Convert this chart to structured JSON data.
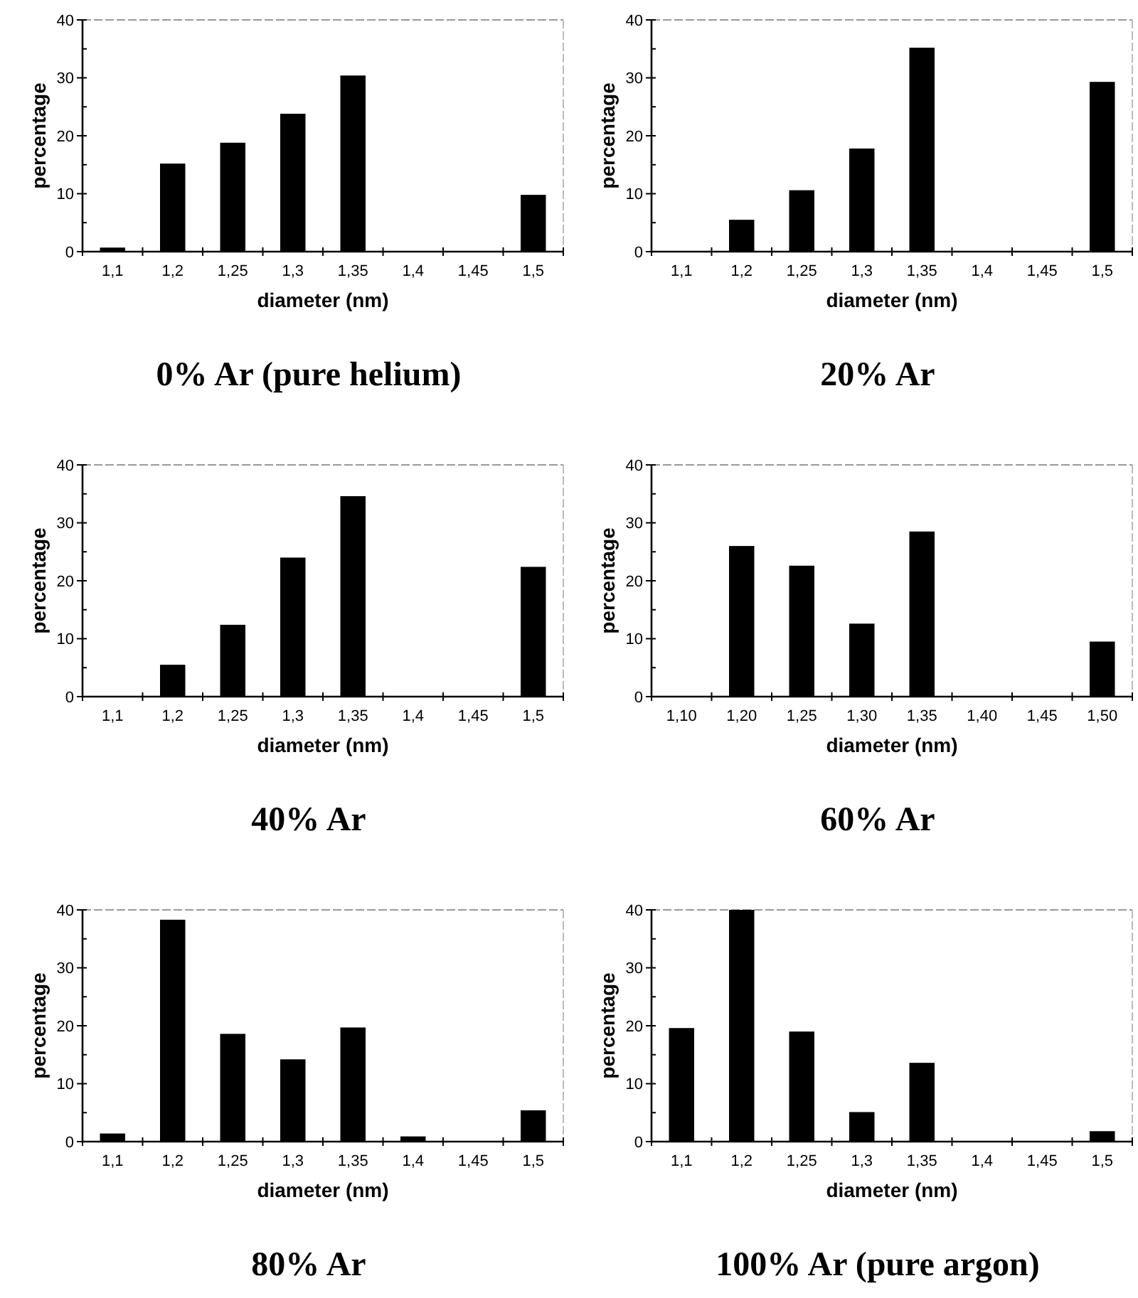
{
  "chart_data": [
    {
      "type": "bar",
      "title": "0% Ar (pure helium)",
      "xlabel": "diameter (nm)",
      "ylabel": "percentage",
      "categories": [
        "1,1",
        "1,2",
        "1,25",
        "1,3",
        "1,35",
        "1,4",
        "1,45",
        "1,5"
      ],
      "values": [
        0.7,
        15.2,
        18.8,
        23.8,
        30.4,
        0,
        0,
        9.8
      ],
      "color": "#000000",
      "ylim": [
        0,
        40
      ],
      "yticks": [
        0,
        {
          "value": 5,
          "label": null
        },
        10,
        {
          "value": 15,
          "label": null
        },
        20,
        {
          "value": 25,
          "label": null
        },
        30,
        {
          "value": 35,
          "label": null
        },
        40
      ]
    },
    {
      "type": "bar",
      "title": "20% Ar",
      "xlabel": "diameter (nm)",
      "ylabel": "percentage",
      "categories": [
        "1,1",
        "1,2",
        "1,25",
        "1,3",
        "1,35",
        "1,4",
        "1,45",
        "1,5"
      ],
      "values": [
        0,
        5.5,
        10.6,
        17.8,
        35.2,
        0,
        0,
        29.3
      ],
      "color": "#000000",
      "ylim": [
        0,
        40
      ],
      "yticks": [
        0,
        {
          "value": 5,
          "label": null
        },
        10,
        {
          "value": 15,
          "label": null
        },
        20,
        {
          "value": 25,
          "label": null
        },
        30,
        {
          "value": 35,
          "label": null
        },
        40
      ]
    },
    {
      "type": "bar",
      "title": "40% Ar",
      "xlabel": "diameter (nm)",
      "ylabel": "percentage",
      "categories": [
        "1,1",
        "1,2",
        "1,25",
        "1,3",
        "1,35",
        "1,4",
        "1,45",
        "1,5"
      ],
      "values": [
        0,
        5.5,
        12.4,
        24,
        34.6,
        0,
        0,
        22.4
      ],
      "color": "#000000",
      "ylim": [
        0,
        40
      ],
      "yticks": [
        0,
        {
          "value": 5,
          "label": null
        },
        10,
        {
          "value": 15,
          "label": null
        },
        20,
        {
          "value": 25,
          "label": null
        },
        30,
        {
          "value": 35,
          "label": null
        },
        40
      ]
    },
    {
      "type": "bar",
      "title": "60% Ar",
      "xlabel": "diameter (nm)",
      "ylabel": "percentage",
      "categories": [
        "1,10",
        "1,20",
        "1,25",
        "1,30",
        "1,35",
        "1,40",
        "1,45",
        "1,50"
      ],
      "values": [
        0,
        26,
        22.6,
        12.6,
        28.5,
        0,
        0,
        9.5
      ],
      "color": "#000000",
      "ylim": [
        0,
        40
      ],
      "yticks": [
        0,
        {
          "value": 5,
          "label": null
        },
        10,
        {
          "value": 15,
          "label": null
        },
        20,
        {
          "value": 25,
          "label": null
        },
        30,
        {
          "value": 35,
          "label": null
        },
        40
      ]
    },
    {
      "type": "bar",
      "title": "80% Ar",
      "xlabel": "diameter (nm)",
      "ylabel": "percentage",
      "categories": [
        "1,1",
        "1,2",
        "1,25",
        "1,3",
        "1,35",
        "1,4",
        "1,45",
        "1,5"
      ],
      "values": [
        1.4,
        38.3,
        18.6,
        14.2,
        19.7,
        0.9,
        0,
        5.4
      ],
      "color": "#000000",
      "ylim": [
        0,
        40
      ],
      "yticks": [
        0,
        {
          "value": 5,
          "label": null
        },
        10,
        {
          "value": 15,
          "label": null
        },
        20,
        {
          "value": 25,
          "label": null
        },
        30,
        {
          "value": 35,
          "label": null
        },
        40
      ]
    },
    {
      "type": "bar",
      "title": "100% Ar (pure argon)",
      "xlabel": "diameter (nm)",
      "ylabel": "percentage",
      "categories": [
        "1,1",
        "1,2",
        "1,25",
        "1,3",
        "1,35",
        "1,4",
        "1,45",
        "1,5"
      ],
      "values": [
        19.6,
        40,
        19,
        5.1,
        13.6,
        0,
        0,
        1.8
      ],
      "color": "#000000",
      "ylim": [
        0,
        40
      ],
      "yticks": [
        0,
        {
          "value": 5,
          "label": null
        },
        10,
        {
          "value": 15,
          "label": null
        },
        20,
        {
          "value": 25,
          "label": null
        },
        30,
        {
          "value": 35,
          "label": null
        },
        40
      ]
    }
  ]
}
